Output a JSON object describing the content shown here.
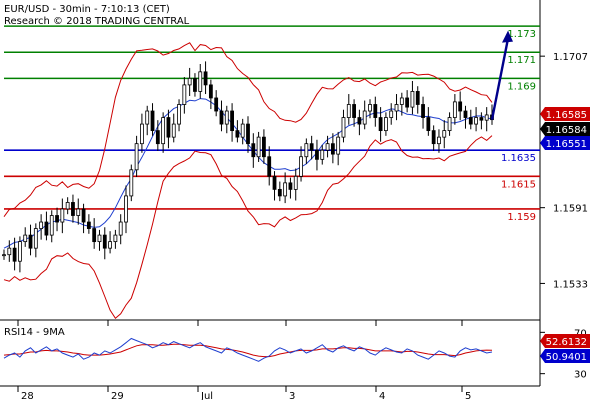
{
  "header": {
    "line1": "EUR/USD - 30min - 7:10:13 (CET)",
    "line2": "Research © 2018 TRADING CENTRAL"
  },
  "colors": {
    "green": "#008000",
    "blue": "#0000cc",
    "red": "#cc0000",
    "candle": "#000000",
    "ma": "#1f3fcf",
    "bands": "#cc0000",
    "projection": "#00008b"
  },
  "chart_data": [
    {
      "type": "candlestick",
      "ylim": [
        1.1505,
        1.175
      ],
      "y_ticks": [
        "1.1707",
        "1.1591",
        "1.1533"
      ],
      "x_ticks": [
        "28",
        "29",
        "Jul",
        "3",
        "4",
        "5"
      ],
      "levels": [
        {
          "label": "1.173",
          "value": 1.173,
          "color": "green"
        },
        {
          "label": "1.171",
          "value": 1.171,
          "color": "green"
        },
        {
          "label": "1.169",
          "value": 1.169,
          "color": "green"
        },
        {
          "label": "1.1635",
          "value": 1.1635,
          "color": "blue"
        },
        {
          "label": "1.1615",
          "value": 1.1615,
          "color": "red"
        },
        {
          "label": "1.159",
          "value": 1.159,
          "color": "red"
        }
      ],
      "price_tags": [
        {
          "label": "1.16585",
          "value": 1.16585,
          "style": "red"
        },
        {
          "label": "1.16584",
          "value": 1.16584,
          "style": "black"
        },
        {
          "label": "1.16551",
          "value": 1.16551,
          "style": "blue"
        }
      ],
      "close_path": [
        1.1555,
        1.156,
        1.155,
        1.1565,
        1.157,
        1.156,
        1.1575,
        1.158,
        1.157,
        1.1585,
        1.158,
        1.159,
        1.1595,
        1.1585,
        1.159,
        1.158,
        1.1575,
        1.1565,
        1.157,
        1.156,
        1.1565,
        1.157,
        1.158,
        1.16,
        1.162,
        1.164,
        1.1655,
        1.1665,
        1.165,
        1.164,
        1.166,
        1.1645,
        1.1655,
        1.167,
        1.1685,
        1.169,
        1.168,
        1.1695,
        1.1685,
        1.1675,
        1.1665,
        1.1655,
        1.1665,
        1.165,
        1.1645,
        1.1655,
        1.164,
        1.163,
        1.1645,
        1.163,
        1.1615,
        1.1605,
        1.16,
        1.161,
        1.1605,
        1.1615,
        1.163,
        1.164,
        1.1635,
        1.1628,
        1.1635,
        1.164,
        1.1632,
        1.1645,
        1.166,
        1.167,
        1.166,
        1.1655,
        1.1665,
        1.167,
        1.166,
        1.165,
        1.166,
        1.1665,
        1.167,
        1.1675,
        1.1668,
        1.168,
        1.167,
        1.166,
        1.165,
        1.164,
        1.1645,
        1.165,
        1.166,
        1.1672,
        1.1665,
        1.166,
        1.1655,
        1.166,
        1.1658,
        1.1662,
        1.16584
      ],
      "projection": {
        "from": 1.16584,
        "to": 1.1725
      }
    },
    {
      "type": "line",
      "title": "RSI14 - 9MA",
      "ylim": [
        20,
        80
      ],
      "y_ticks": [
        "70",
        "30"
      ],
      "tags": [
        {
          "label": "52.6132",
          "style": "red"
        },
        {
          "label": "50.9401",
          "style": "blue"
        }
      ],
      "rsi": [
        45,
        48,
        50,
        46,
        52,
        55,
        50,
        53,
        56,
        52,
        54,
        50,
        48,
        46,
        49,
        44,
        46,
        50,
        48,
        52,
        50,
        53,
        56,
        60,
        64,
        62,
        60,
        58,
        55,
        57,
        60,
        58,
        61,
        59,
        57,
        55,
        58,
        60,
        56,
        54,
        52,
        50,
        55,
        53,
        50,
        48,
        46,
        44,
        42,
        45,
        47,
        52,
        55,
        53,
        50,
        52,
        54,
        50,
        52,
        55,
        58,
        53,
        51,
        55,
        57,
        54,
        52,
        56,
        54,
        50,
        48,
        52,
        55,
        53,
        51,
        50,
        54,
        52,
        48,
        46,
        44,
        48,
        52,
        50,
        47,
        46,
        52,
        55,
        53,
        54,
        52,
        50,
        51
      ],
      "ma": [
        48,
        48.5,
        49,
        49,
        50,
        51,
        51,
        52,
        52.5,
        52,
        52,
        51.5,
        51,
        50,
        49.5,
        48.5,
        48,
        48,
        48,
        48.5,
        49,
        50,
        51,
        53,
        55,
        57,
        58,
        58,
        58,
        57.5,
        57.5,
        58,
        58.5,
        58.5,
        58,
        57.5,
        57.5,
        57.5,
        57,
        56,
        55,
        54,
        53.5,
        53,
        52,
        51,
        49.5,
        48,
        47,
        46.5,
        46.5,
        47.5,
        49,
        50,
        51,
        52,
        52.5,
        52.5,
        52.5,
        53,
        54,
        54,
        54,
        54.5,
        55,
        55,
        54.5,
        54.5,
        54,
        53,
        52,
        52,
        52,
        52,
        51.5,
        51,
        51.5,
        51.5,
        51,
        50,
        49,
        48.5,
        48.5,
        48.5,
        48,
        47.5,
        48.5,
        50,
        51,
        52,
        52.5,
        52.8,
        52.6
      ]
    }
  ]
}
